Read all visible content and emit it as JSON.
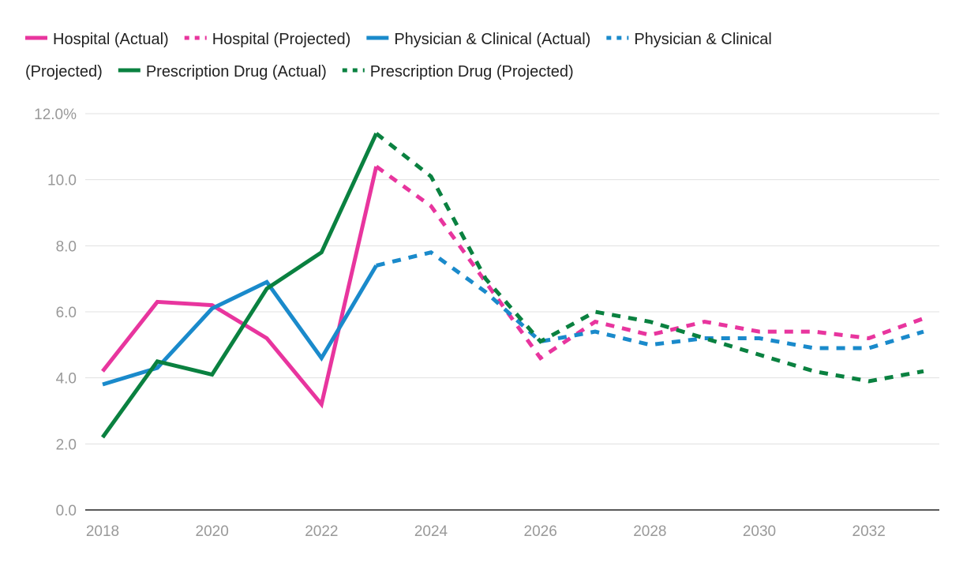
{
  "chart_data": {
    "type": "line",
    "title": "",
    "xlabel": "",
    "ylabel": "",
    "ylim": [
      0,
      12
    ],
    "xlim": [
      2018,
      2033
    ],
    "y_ticks": [
      0,
      2,
      4,
      6,
      8,
      10,
      12
    ],
    "y_tick_labels": [
      "0.0",
      "2.0",
      "4.0",
      "6.0",
      "8.0",
      "10.0",
      "12.0%"
    ],
    "x_ticks": [
      2018,
      2020,
      2022,
      2024,
      2026,
      2028,
      2030,
      2032
    ],
    "x_tick_labels": [
      "2018",
      "2020",
      "2022",
      "2024",
      "2026",
      "2028",
      "2030",
      "2032"
    ],
    "grid": true,
    "legend_position": "top",
    "colors": {
      "hospital": "#e8359e",
      "physician": "#1a8acb",
      "drug": "#0a8140",
      "grid": "#e0e0e0",
      "axis": "#222222"
    },
    "series": [
      {
        "name": "Hospital (Actual)",
        "color": "#e8359e",
        "dashed": false,
        "x": [
          2018,
          2019,
          2020,
          2021,
          2022,
          2023
        ],
        "values": [
          4.2,
          6.3,
          6.2,
          5.2,
          3.2,
          10.4
        ]
      },
      {
        "name": "Hospital (Projected)",
        "color": "#e8359e",
        "dashed": true,
        "x": [
          2023,
          2024,
          2025,
          2026,
          2027,
          2028,
          2029,
          2030,
          2031,
          2032,
          2033
        ],
        "values": [
          10.4,
          9.2,
          6.9,
          4.6,
          5.7,
          5.3,
          5.7,
          5.4,
          5.4,
          5.2,
          5.8
        ]
      },
      {
        "name": "Physician & Clinical (Actual)",
        "color": "#1a8acb",
        "dashed": false,
        "x": [
          2018,
          2019,
          2020,
          2021,
          2022,
          2023
        ],
        "values": [
          3.8,
          4.3,
          6.1,
          6.9,
          4.6,
          7.4
        ]
      },
      {
        "name": "Physician & Clinical (Projected)",
        "color": "#1a8acb",
        "dashed": true,
        "x": [
          2023,
          2024,
          2025,
          2026,
          2027,
          2028,
          2029,
          2030,
          2031,
          2032,
          2033
        ],
        "values": [
          7.4,
          7.8,
          6.6,
          5.1,
          5.4,
          5.0,
          5.2,
          5.2,
          4.9,
          4.9,
          5.4
        ]
      },
      {
        "name": "Prescription Drug (Actual)",
        "color": "#0a8140",
        "dashed": false,
        "x": [
          2018,
          2019,
          2020,
          2021,
          2022,
          2023
        ],
        "values": [
          2.2,
          4.5,
          4.1,
          6.7,
          7.8,
          11.4
        ]
      },
      {
        "name": "Prescription Drug (Projected)",
        "color": "#0a8140",
        "dashed": true,
        "x": [
          2023,
          2024,
          2025,
          2026,
          2027,
          2028,
          2029,
          2030,
          2031,
          2032,
          2033
        ],
        "values": [
          11.4,
          10.1,
          7.0,
          5.1,
          6.0,
          5.7,
          5.2,
          4.7,
          4.2,
          3.9,
          4.2
        ]
      }
    ],
    "legend_rows": [
      [
        0,
        1,
        2,
        3
      ],
      [
        4,
        5
      ]
    ],
    "legend_wrap_labels": {
      "3": [
        "Physician & Clinical",
        "(Projected)"
      ]
    }
  }
}
